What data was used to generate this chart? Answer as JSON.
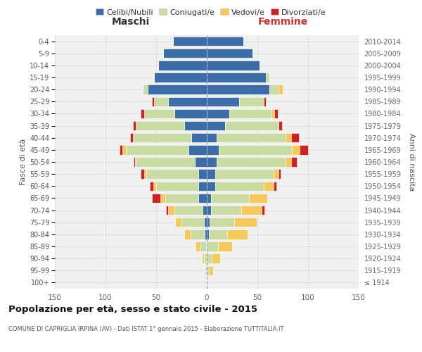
{
  "age_groups": [
    "100+",
    "95-99",
    "90-94",
    "85-89",
    "80-84",
    "75-79",
    "70-74",
    "65-69",
    "60-64",
    "55-59",
    "50-54",
    "45-49",
    "40-44",
    "35-39",
    "30-34",
    "25-29",
    "20-24",
    "15-19",
    "10-14",
    "5-9",
    "0-4"
  ],
  "birth_years": [
    "≤ 1914",
    "1915-1919",
    "1920-1924",
    "1925-1929",
    "1930-1934",
    "1935-1939",
    "1940-1944",
    "1945-1949",
    "1950-1954",
    "1955-1959",
    "1960-1964",
    "1965-1969",
    "1970-1974",
    "1975-1979",
    "1980-1984",
    "1985-1989",
    "1990-1994",
    "1995-1999",
    "2000-2004",
    "2005-2009",
    "2010-2014"
  ],
  "maschi": {
    "celibi": [
      1,
      1,
      0,
      1,
      2,
      3,
      4,
      8,
      8,
      8,
      12,
      18,
      15,
      22,
      32,
      38,
      58,
      52,
      48,
      43,
      33
    ],
    "coniugati": [
      0,
      1,
      3,
      6,
      14,
      22,
      28,
      33,
      42,
      52,
      58,
      62,
      58,
      48,
      30,
      14,
      5,
      1,
      0,
      0,
      0
    ],
    "vedovi": [
      0,
      0,
      2,
      4,
      6,
      6,
      6,
      5,
      3,
      2,
      1,
      3,
      0,
      0,
      0,
      0,
      0,
      0,
      0,
      0,
      0
    ],
    "divorziati": [
      0,
      0,
      0,
      0,
      0,
      0,
      2,
      8,
      3,
      3,
      1,
      3,
      3,
      3,
      3,
      2,
      0,
      0,
      0,
      0,
      0
    ]
  },
  "femmine": {
    "nubili": [
      0,
      0,
      0,
      1,
      2,
      3,
      4,
      4,
      8,
      8,
      10,
      12,
      10,
      18,
      22,
      32,
      62,
      58,
      52,
      45,
      36
    ],
    "coniugate": [
      0,
      2,
      5,
      10,
      18,
      24,
      30,
      38,
      48,
      58,
      68,
      72,
      68,
      52,
      42,
      24,
      8,
      4,
      0,
      0,
      0
    ],
    "vedove": [
      0,
      4,
      8,
      14,
      20,
      22,
      20,
      18,
      10,
      5,
      5,
      8,
      5,
      1,
      3,
      0,
      5,
      0,
      0,
      0,
      0
    ],
    "divorziate": [
      0,
      0,
      0,
      0,
      0,
      0,
      3,
      0,
      3,
      2,
      6,
      8,
      8,
      3,
      3,
      2,
      0,
      0,
      0,
      0,
      0
    ]
  },
  "colors": {
    "celibi": "#3c6da6",
    "coniugati": "#c8dba0",
    "vedovi": "#f5c85c",
    "divorziati": "#cc2222"
  },
  "xlim": 150,
  "title": "Popolazione per età, sesso e stato civile - 2015",
  "subtitle": "COMUNE DI CAPRIGLIA IRPINA (AV) - Dati ISTAT 1° gennaio 2015 - Elaborazione TUTTITALIA.IT",
  "ylabel_left": "Fasce di età",
  "ylabel_right": "Anni di nascita",
  "label_maschi": "Maschi",
  "label_femmine": "Femmine",
  "legend_labels": [
    "Celibi/Nubili",
    "Coniugati/e",
    "Vedovi/e",
    "Divorziati/e"
  ],
  "bg_color": "#ffffff",
  "plot_bg": "#f0f0f0",
  "grid_color": "#cccccc"
}
